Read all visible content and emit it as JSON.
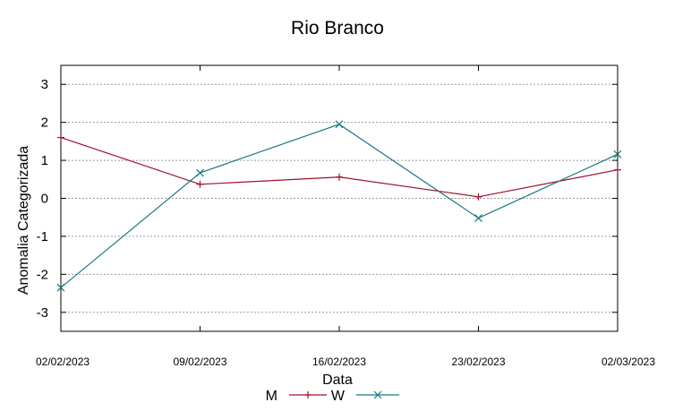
{
  "chart_data": {
    "type": "line",
    "title": "Rio Branco",
    "xlabel": "Data",
    "ylabel": "Anomalia Categorizada",
    "categories": [
      "02/02/2023",
      "09/02/2023",
      "16/02/2023",
      "23/02/2023",
      "02/03/2023"
    ],
    "yticks": [
      "3",
      "2",
      "1",
      "0",
      "-1",
      "-2",
      "-3"
    ],
    "ylim": [
      -3.5,
      3.5
    ],
    "grid": true,
    "legend_position": "bottom-center",
    "series": [
      {
        "name": "M",
        "color": "#a0102a",
        "marker": "plus",
        "values": [
          1.6,
          0.37,
          0.56,
          0.04,
          0.75
        ]
      },
      {
        "name": "W",
        "color": "#1a7a84",
        "marker": "cross",
        "values": [
          -2.35,
          0.67,
          1.95,
          -0.52,
          1.16
        ]
      }
    ]
  }
}
